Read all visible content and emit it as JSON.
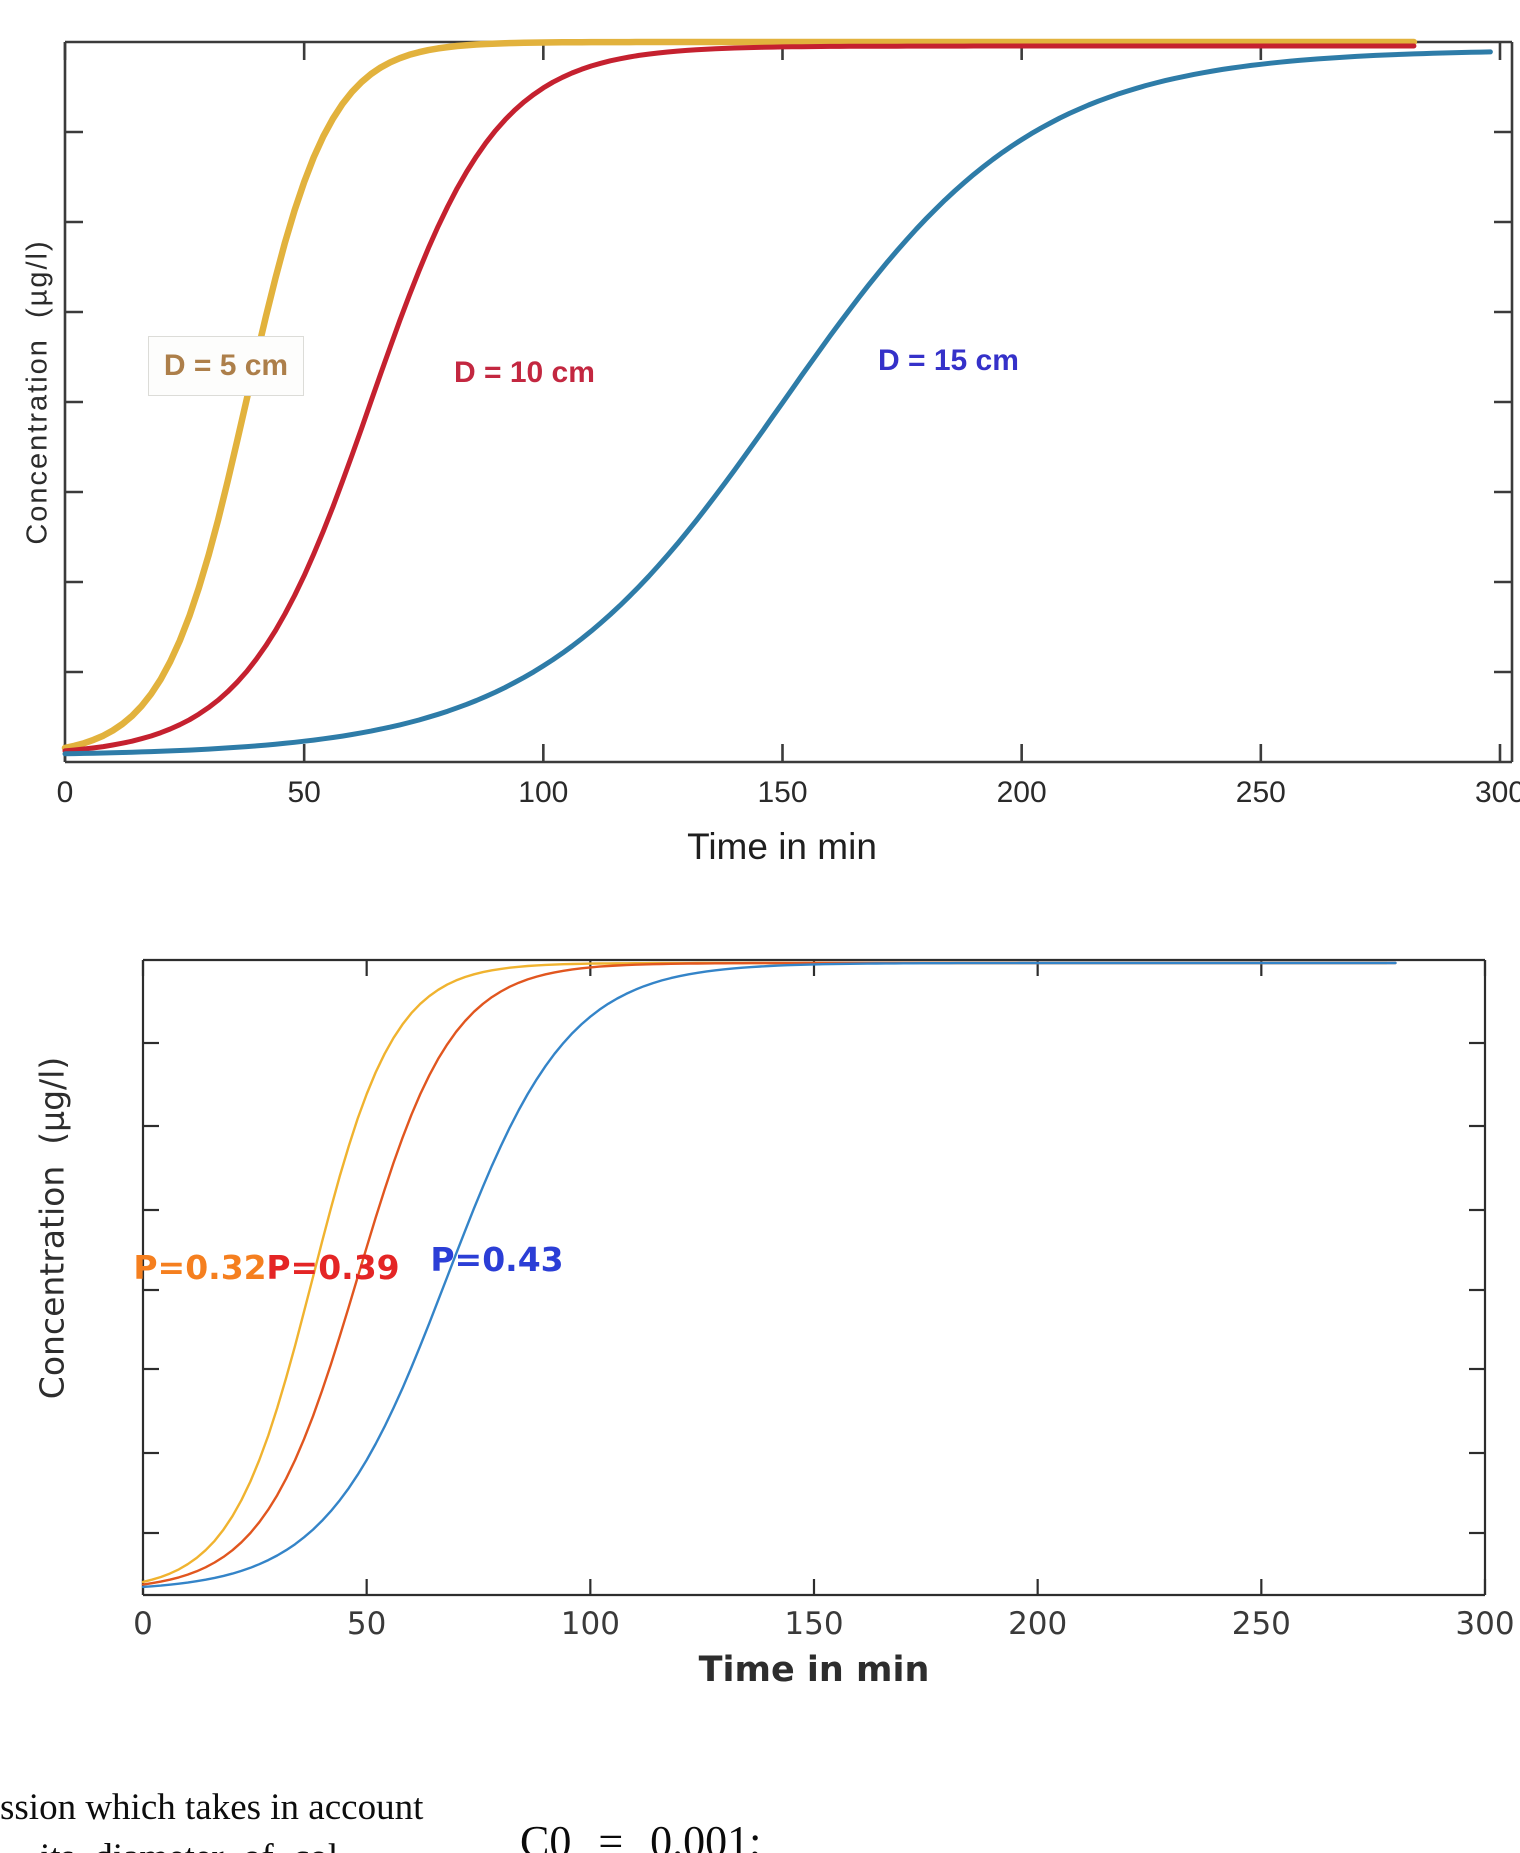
{
  "chart_data": [
    {
      "type": "line",
      "title": "",
      "xlabel": "Time in min",
      "ylabel": "Concentration  (µg/l)",
      "xlim": [
        0,
        300
      ],
      "x_ticks": [
        0,
        50,
        100,
        150,
        200,
        250,
        300
      ],
      "y_ticks": "7 unlabeled ticks, no numeric y labels",
      "grid": false,
      "legend_position": "inline annotations on curves",
      "x": [
        0,
        25,
        50,
        75,
        100,
        125,
        150,
        175,
        200,
        225,
        250,
        275,
        300
      ],
      "series": [
        {
          "name": "D = 5 cm",
          "color": "#e2b23d",
          "label_color": "#ad7f4a",
          "shape": "sigmoid",
          "sigmoid": {
            "t0": 38,
            "s": 8.5
          },
          "values": [
            0.011,
            0.178,
            0.804,
            0.987,
            0.999,
            1,
            1,
            1,
            1,
            1,
            1,
            1,
            1
          ]
        },
        {
          "name": "D = 10 cm",
          "color": "#c5212f",
          "label_color": "#c32740",
          "shape": "sigmoid",
          "sigmoid": {
            "t0": 64,
            "s": 13
          },
          "values": [
            0.007,
            0.047,
            0.254,
            0.7,
            0.941,
            0.991,
            0.999,
            1,
            1,
            1,
            1,
            1,
            1
          ]
        },
        {
          "name": "D = 15 cm",
          "color": "#2e7ca8",
          "label_color": "#3531c9",
          "shape": "sigmoid",
          "sigmoid": {
            "t0": 150,
            "s": 26
          },
          "values": [
            0.003,
            0.008,
            0.021,
            0.053,
            0.127,
            0.276,
            0.5,
            0.724,
            0.873,
            0.947,
            0.979,
            0.992,
            0.997
          ]
        }
      ]
    },
    {
      "type": "line",
      "title": "",
      "xlabel": "Time in min",
      "ylabel": "Concentration  (µg/l)",
      "xlim": [
        0,
        300
      ],
      "x_ticks": [
        0,
        50,
        100,
        150,
        200,
        250,
        300
      ],
      "y_ticks": "7 unlabeled ticks, no numeric y labels",
      "grid": false,
      "legend_position": "inline annotations left of curves",
      "x": [
        0,
        25,
        50,
        75,
        100,
        125,
        150,
        175,
        200,
        225,
        250,
        275,
        300
      ],
      "series": [
        {
          "name": "P=0.32",
          "color": "#f0b32f",
          "label_color": "#f57f1f",
          "shape": "sigmoid",
          "sigmoid": {
            "t0": 38,
            "s": 9
          },
          "values": [
            0.014,
            0.191,
            0.791,
            0.984,
            0.999,
            1,
            1,
            1,
            1,
            1,
            1,
            1,
            1
          ]
        },
        {
          "name": "P=0.39",
          "color": "#e1561f",
          "label_color": "#e42525",
          "shape": "sigmoid",
          "sigmoid": {
            "t0": 48,
            "s": 10.5
          },
          "values": [
            0.01,
            0.101,
            0.547,
            0.929,
            0.993,
            0.999,
            1,
            1,
            1,
            1,
            1,
            1,
            1
          ]
        },
        {
          "name": "P=0.43",
          "color": "#3484c8",
          "label_color": "#2b3ed6",
          "shape": "sigmoid",
          "sigmoid": {
            "t0": 68,
            "s": 13.5
          },
          "values": [
            0.006,
            0.04,
            0.209,
            0.627,
            0.915,
            0.986,
            0.998,
            1,
            1,
            1,
            1,
            1,
            1
          ]
        }
      ]
    }
  ],
  "caption": {
    "line1": "ssion which takes in account",
    "line2_fragment": "its diameter of col",
    "equation": "C0 = 0.001;"
  }
}
